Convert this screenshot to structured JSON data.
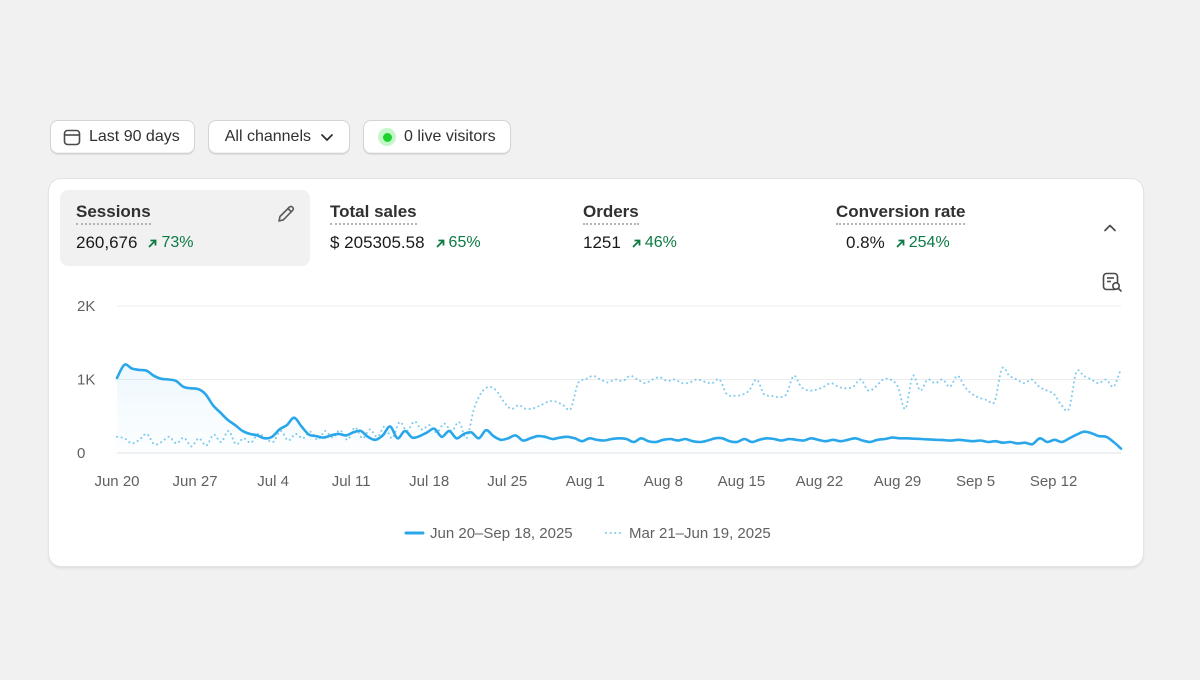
{
  "filters": {
    "date_range": "Last 90 days",
    "channels": "All channels",
    "live_visitors": "0 live visitors"
  },
  "metrics": [
    {
      "label": "Sessions",
      "value": "260,676",
      "change": "73%"
    },
    {
      "label": "Total sales",
      "value": "$ 205305.58",
      "change": "65%"
    },
    {
      "label": "Orders",
      "value": "1251",
      "change": "46%"
    },
    {
      "label": "Conversion rate",
      "value": "0.8%",
      "change": "254%"
    }
  ],
  "icons": {
    "date": "calendar-icon",
    "channels": "chevron-down-icon",
    "live": "live-dot-icon",
    "edit": "pencil-icon",
    "collapse": "chevron-up-icon",
    "inspect": "search-document-icon",
    "change": "arrow-up-right-icon"
  },
  "colors": {
    "current_series": "#29a7ea",
    "previous_series": "#7fcbee",
    "positive": "#0c7a43",
    "live": "#1fd12f"
  },
  "chart_data": {
    "type": "line",
    "x_tick_labels": [
      "Jun 20",
      "Jun 27",
      "Jul 4",
      "Jul 11",
      "Jul 18",
      "Jul 25",
      "Aug 1",
      "Aug 8",
      "Aug 15",
      "Aug 22",
      "Aug 29",
      "Sep 5",
      "Sep 12"
    ],
    "y_tick_labels": [
      "2K",
      "1K",
      "0"
    ],
    "ylim": [
      0,
      2000
    ],
    "grid": true,
    "legend_position": "bottom",
    "series": [
      {
        "name": "Jun 20–Sep 18, 2025",
        "style": "solid",
        "values": [
          1020,
          1200,
          1150,
          1130,
          1120,
          1050,
          1010,
          1000,
          980,
          900,
          880,
          870,
          800,
          650,
          550,
          450,
          380,
          300,
          260,
          240,
          200,
          220,
          320,
          380,
          480,
          360,
          250,
          230,
          210,
          240,
          260,
          240,
          280,
          300,
          220,
          180,
          240,
          360,
          200,
          300,
          210,
          230,
          280,
          330,
          220,
          300,
          200,
          260,
          280,
          200,
          310,
          230,
          180,
          200,
          240,
          170,
          200,
          230,
          220,
          190,
          210,
          220,
          200,
          160,
          200,
          180,
          170,
          190,
          200,
          190,
          150,
          200,
          160,
          150,
          180,
          190,
          170,
          190,
          160,
          150,
          170,
          200,
          200,
          160,
          150,
          190,
          150,
          180,
          200,
          190,
          170,
          190,
          180,
          170,
          200,
          180,
          160,
          180,
          160,
          180,
          200,
          170,
          150,
          180,
          190,
          210,
          200,
          200,
          195,
          190,
          185,
          180,
          175,
          170,
          180,
          170,
          160,
          170,
          150,
          160,
          140,
          150,
          130,
          140,
          120,
          200,
          150,
          180,
          150,
          200,
          250,
          290,
          270,
          230,
          220,
          150,
          60
        ]
      },
      {
        "name": "Mar 21–Jun 19, 2025",
        "style": "dotted",
        "values": [
          220,
          200,
          130,
          180,
          260,
          120,
          150,
          220,
          130,
          210,
          90,
          200,
          100,
          250,
          150,
          300,
          120,
          200,
          140,
          260,
          200,
          150,
          300,
          170,
          260,
          200,
          290,
          180,
          300,
          210,
          310,
          180,
          350,
          200,
          320,
          220,
          360,
          200,
          420,
          300,
          430,
          320,
          380,
          280,
          400,
          300,
          420,
          200,
          600,
          820,
          900,
          850,
          700,
          600,
          650,
          600,
          610,
          650,
          700,
          700,
          650,
          600,
          950,
          1000,
          1050,
          1000,
          960,
          1000,
          980,
          1050,
          1000,
          950,
          1000,
          1030,
          980,
          1000,
          950,
          960,
          1000,
          970,
          950,
          1000,
          800,
          780,
          790,
          850,
          1000,
          800,
          780,
          760,
          800,
          1050,
          900,
          850,
          860,
          900,
          950,
          900,
          880,
          900,
          1000,
          850,
          900,
          1000,
          1000,
          900,
          600,
          1050,
          850,
          1000,
          950,
          1000,
          900,
          1050,
          900,
          800,
          750,
          720,
          700,
          1150,
          1050,
          1000,
          950,
          1000,
          900,
          850,
          800,
          650,
          600,
          1100,
          1050,
          1000,
          950,
          1000,
          900,
          1150
        ]
      }
    ]
  }
}
